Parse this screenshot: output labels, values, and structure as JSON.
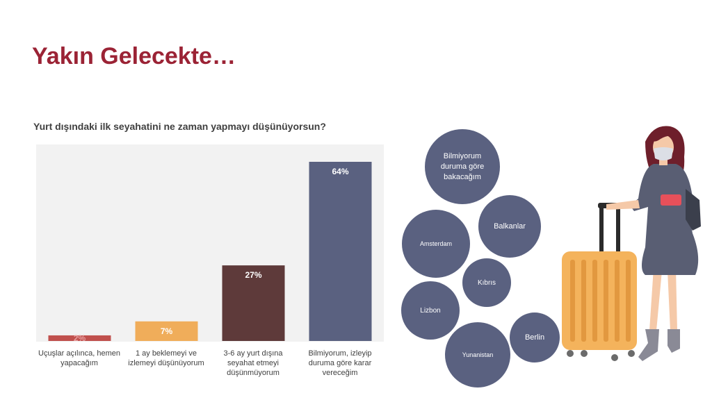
{
  "slide": {
    "title": "Yakın Gelecekte…"
  },
  "chart_data": {
    "type": "bar",
    "title": "Yurt dışındaki ilk seyahatini ne zaman yapmayı düşünüyorsun?",
    "categories": [
      "Uçuşlar açılınca, hemen yapacağım",
      "1 ay beklemeyi ve izlemeyi düşünüyorum",
      "3-6 ay yurt dışına seyahat etmeyi düşünmüyorum",
      "Bilmiyorum, izleyip duruma göre karar vereceğim"
    ],
    "values": [
      2,
      7,
      27,
      64
    ],
    "data_labels": [
      "2%",
      "7%",
      "27%",
      "64%"
    ],
    "colors": [
      "#c0504d",
      "#f0ad5a",
      "#5e3a3a",
      "#5a6180"
    ],
    "ylim": [
      0,
      70
    ],
    "grid": false
  },
  "bubbles": [
    {
      "label": "Bilmiyorum duruma göre bakacağım"
    },
    {
      "label": "Amsterdam"
    },
    {
      "label": "Balkanlar"
    },
    {
      "label": "Kıbrıs"
    },
    {
      "label": "Lizbon"
    },
    {
      "label": "Berlin"
    },
    {
      "label": "Yunanistan"
    }
  ]
}
